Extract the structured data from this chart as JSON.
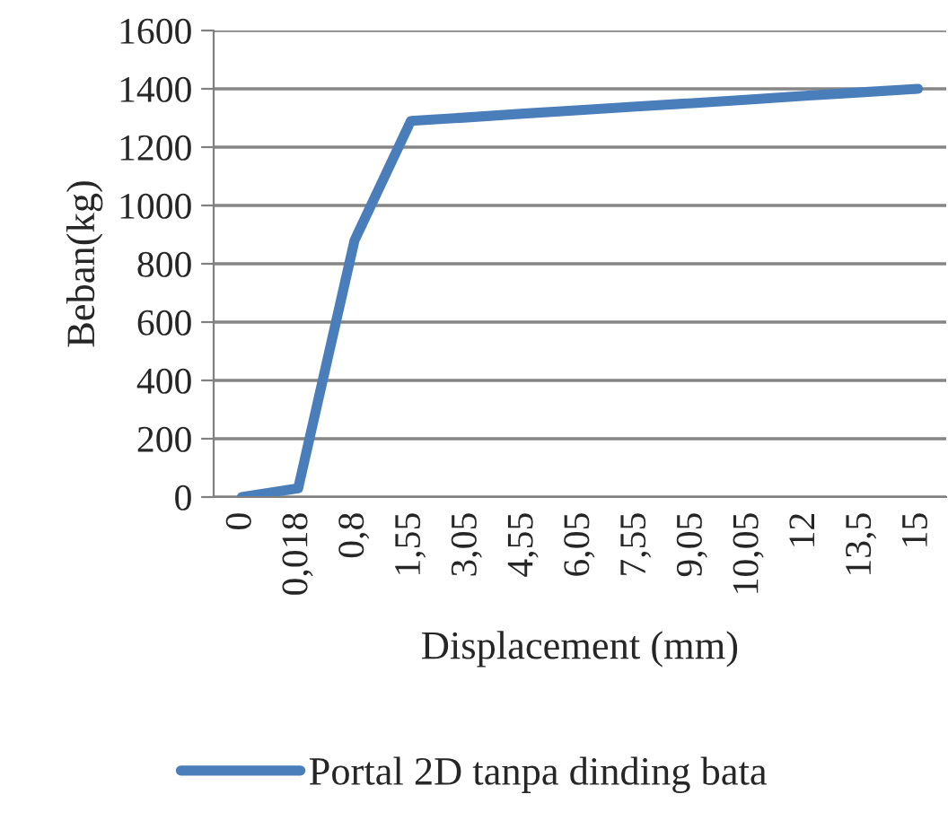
{
  "chart_data": {
    "type": "line",
    "xlabel": "Displacement (mm)",
    "ylabel": "Beban(kg)",
    "categories": [
      "0",
      "0,018",
      "0,8",
      "1,55",
      "3,05",
      "4,55",
      "6,05",
      "7,55",
      "9,05",
      "10,05",
      "12",
      "13,5",
      "15"
    ],
    "series": [
      {
        "name": "Portal 2D tanpa dinding bata",
        "color": "#4a7ebb",
        "values": [
          0,
          30,
          880,
          1290,
          1302,
          1315,
          1327,
          1339,
          1351,
          1363,
          1376,
          1388,
          1400
        ]
      }
    ],
    "ylim": [
      0,
      1600
    ],
    "yticks": [
      0,
      200,
      400,
      600,
      800,
      1000,
      1200,
      1400,
      1600
    ],
    "grid": "y",
    "legend": "bottom",
    "marker": "none",
    "line_style": "solid"
  }
}
